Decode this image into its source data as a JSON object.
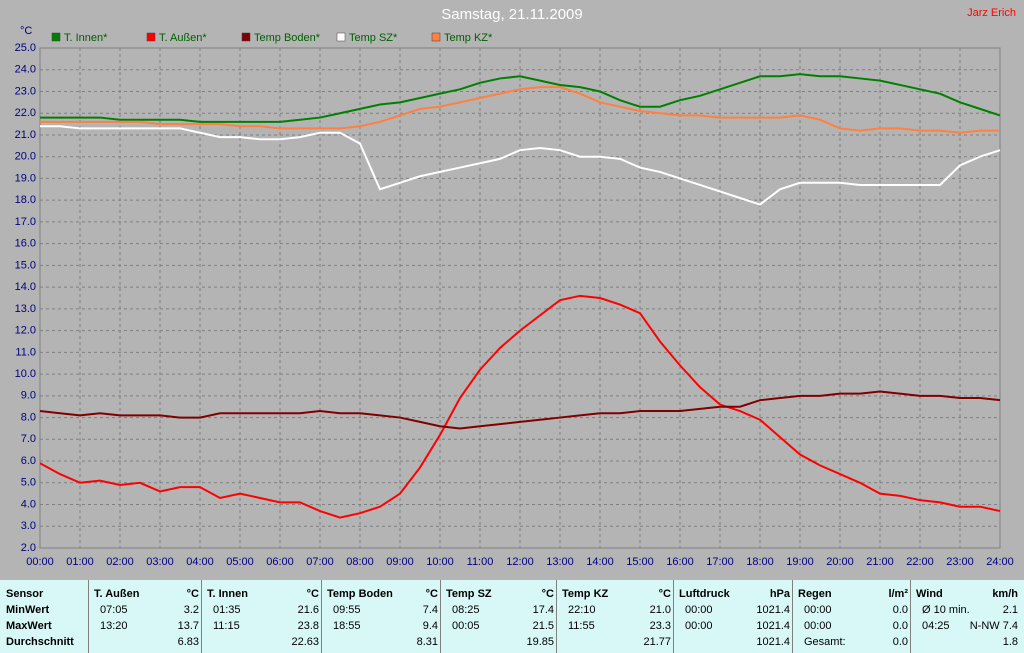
{
  "chart_data": {
    "type": "line",
    "title": "Samstag, 21.11.2009",
    "author": "Jarz Erich",
    "y_label": "°C",
    "x": [
      0,
      0.5,
      1,
      1.5,
      2,
      2.5,
      3,
      3.5,
      4,
      4.5,
      5,
      5.5,
      6,
      6.5,
      7,
      7.5,
      8,
      8.5,
      9,
      9.5,
      10,
      10.5,
      11,
      11.5,
      12,
      12.5,
      13,
      13.5,
      14,
      14.5,
      15,
      15.5,
      16,
      16.5,
      17,
      17.5,
      18,
      18.5,
      19,
      19.5,
      20,
      20.5,
      21,
      21.5,
      22,
      22.5,
      23,
      23.5,
      24
    ],
    "series": [
      {
        "name": "T. Innen*",
        "color": "#008000",
        "values": [
          21.8,
          21.8,
          21.8,
          21.8,
          21.7,
          21.7,
          21.7,
          21.7,
          21.6,
          21.6,
          21.6,
          21.6,
          21.6,
          21.7,
          21.8,
          22.0,
          22.2,
          22.4,
          22.5,
          22.7,
          22.9,
          23.1,
          23.4,
          23.6,
          23.7,
          23.5,
          23.3,
          23.2,
          23.0,
          22.6,
          22.3,
          22.3,
          22.6,
          22.8,
          23.1,
          23.4,
          23.7,
          23.7,
          23.8,
          23.7,
          23.7,
          23.6,
          23.5,
          23.3,
          23.1,
          22.9,
          22.5,
          22.2,
          21.9
        ]
      },
      {
        "name": "T. Außen*",
        "color": "#ff0000",
        "values": [
          5.9,
          5.4,
          5.0,
          5.1,
          4.9,
          5.0,
          4.6,
          4.8,
          4.8,
          4.3,
          4.5,
          4.3,
          4.1,
          4.1,
          3.7,
          3.4,
          3.6,
          3.9,
          4.5,
          5.7,
          7.2,
          8.9,
          10.2,
          11.2,
          12.0,
          12.7,
          13.4,
          13.6,
          13.5,
          13.2,
          12.8,
          11.5,
          10.4,
          9.4,
          8.6,
          8.3,
          7.9,
          7.1,
          6.3,
          5.8,
          5.4,
          5.0,
          4.5,
          4.4,
          4.2,
          4.1,
          3.9,
          3.9,
          3.7
        ]
      },
      {
        "name": "Temp Boden*",
        "color": "#800000",
        "values": [
          8.3,
          8.2,
          8.1,
          8.2,
          8.1,
          8.1,
          8.1,
          8.0,
          8.0,
          8.2,
          8.2,
          8.2,
          8.2,
          8.2,
          8.3,
          8.2,
          8.2,
          8.1,
          8.0,
          7.8,
          7.6,
          7.5,
          7.6,
          7.7,
          7.8,
          7.9,
          8.0,
          8.1,
          8.2,
          8.2,
          8.3,
          8.3,
          8.3,
          8.4,
          8.5,
          8.5,
          8.8,
          8.9,
          9.0,
          9.0,
          9.1,
          9.1,
          9.2,
          9.1,
          9.0,
          9.0,
          8.9,
          8.9,
          8.8
        ]
      },
      {
        "name": "Temp SZ*",
        "color": "#ffffff",
        "values": [
          21.4,
          21.4,
          21.3,
          21.3,
          21.3,
          21.3,
          21.3,
          21.3,
          21.1,
          20.9,
          20.9,
          20.8,
          20.8,
          20.9,
          21.1,
          21.1,
          20.6,
          18.5,
          18.8,
          19.1,
          19.3,
          19.5,
          19.7,
          19.9,
          20.3,
          20.4,
          20.3,
          20.0,
          20.0,
          19.9,
          19.5,
          19.3,
          19.0,
          18.7,
          18.4,
          18.1,
          17.8,
          18.5,
          18.8,
          18.8,
          18.8,
          18.7,
          18.7,
          18.7,
          18.7,
          18.7,
          19.6,
          20.0,
          20.3
        ]
      },
      {
        "name": "Temp KZ*",
        "color": "#ff8040",
        "values": [
          21.6,
          21.6,
          21.6,
          21.6,
          21.6,
          21.6,
          21.5,
          21.5,
          21.5,
          21.5,
          21.4,
          21.4,
          21.3,
          21.3,
          21.3,
          21.3,
          21.4,
          21.6,
          21.9,
          22.2,
          22.3,
          22.5,
          22.7,
          22.9,
          23.1,
          23.2,
          23.2,
          22.9,
          22.5,
          22.3,
          22.1,
          22.0,
          21.9,
          21.9,
          21.8,
          21.8,
          21.8,
          21.8,
          21.9,
          21.7,
          21.3,
          21.2,
          21.3,
          21.3,
          21.2,
          21.2,
          21.1,
          21.2,
          21.2
        ]
      }
    ],
    "xlim": [
      0,
      24
    ],
    "ylim": [
      2,
      25
    ],
    "xticks": [
      {
        "value": 0,
        "label": "00:00"
      },
      {
        "value": 1,
        "label": "01:00"
      },
      {
        "value": 2,
        "label": "02:00"
      },
      {
        "value": 3,
        "label": "03:00"
      },
      {
        "value": 4,
        "label": "04:00"
      },
      {
        "value": 5,
        "label": "05:00"
      },
      {
        "value": 6,
        "label": "06:00"
      },
      {
        "value": 7,
        "label": "07:00"
      },
      {
        "value": 8,
        "label": "08:00"
      },
      {
        "value": 9,
        "label": "09:00"
      },
      {
        "value": 10,
        "label": "10:00"
      },
      {
        "value": 11,
        "label": "11:00"
      },
      {
        "value": 12,
        "label": "12:00"
      },
      {
        "value": 13,
        "label": "13:00"
      },
      {
        "value": 14,
        "label": "14:00"
      },
      {
        "value": 15,
        "label": "15:00"
      },
      {
        "value": 16,
        "label": "16:00"
      },
      {
        "value": 17,
        "label": "17:00"
      },
      {
        "value": 18,
        "label": "18:00"
      },
      {
        "value": 19,
        "label": "19:00"
      },
      {
        "value": 20,
        "label": "20:00"
      },
      {
        "value": 21,
        "label": "21:00"
      },
      {
        "value": 22,
        "label": "22:00"
      },
      {
        "value": 23,
        "label": "23:00"
      },
      {
        "value": 24,
        "label": "24:00"
      }
    ],
    "yticks": [
      {
        "value": 2,
        "label": "2.0"
      },
      {
        "value": 3,
        "label": "3.0"
      },
      {
        "value": 4,
        "label": "4.0"
      },
      {
        "value": 5,
        "label": "5.0"
      },
      {
        "value": 6,
        "label": "6.0"
      },
      {
        "value": 7,
        "label": "7.0"
      },
      {
        "value": 8,
        "label": "8.0"
      },
      {
        "value": 9,
        "label": "9.0"
      },
      {
        "value": 10,
        "label": "10.0"
      },
      {
        "value": 11,
        "label": "11.0"
      },
      {
        "value": 12,
        "label": "12.0"
      },
      {
        "value": 13,
        "label": "13.0"
      },
      {
        "value": 14,
        "label": "14.0"
      },
      {
        "value": 15,
        "label": "15.0"
      },
      {
        "value": 16,
        "label": "16.0"
      },
      {
        "value": 17,
        "label": "17.0"
      },
      {
        "value": 18,
        "label": "18.0"
      },
      {
        "value": 19,
        "label": "19.0"
      },
      {
        "value": 20,
        "label": "20.0"
      },
      {
        "value": 21,
        "label": "21.0"
      },
      {
        "value": 22,
        "label": "22.0"
      },
      {
        "value": 23,
        "label": "23.0"
      },
      {
        "value": 24,
        "label": "24.0"
      },
      {
        "value": 25,
        "label": "25.0"
      }
    ],
    "grid": true,
    "legend": "top"
  },
  "table": {
    "header": "Sensor",
    "row_labels": [
      "MinWert",
      "MaxWert",
      "Durchschnitt"
    ],
    "groups": [
      {
        "name": "T. Außen",
        "unit": "°C",
        "cells": [
          {
            "time": "07:05",
            "value": "3.2"
          },
          {
            "time": "13:20",
            "value": "13.7"
          },
          {
            "value": "6.83"
          }
        ]
      },
      {
        "name": "T. Innen",
        "unit": "°C",
        "cells": [
          {
            "time": "01:35",
            "value": "21.6"
          },
          {
            "time": "11:15",
            "value": "23.8"
          },
          {
            "value": "22.63"
          }
        ]
      },
      {
        "name": "Temp Boden",
        "unit": "°C",
        "cells": [
          {
            "time": "09:55",
            "value": "7.4"
          },
          {
            "time": "18:55",
            "value": "9.4"
          },
          {
            "value": "8.31"
          }
        ]
      },
      {
        "name": "Temp SZ",
        "unit": "°C",
        "cells": [
          {
            "time": "08:25",
            "value": "17.4"
          },
          {
            "time": "00:05",
            "value": "21.5"
          },
          {
            "value": "19.85"
          }
        ]
      },
      {
        "name": "Temp KZ",
        "unit": "°C",
        "cells": [
          {
            "time": "22:10",
            "value": "21.0"
          },
          {
            "time": "11:55",
            "value": "23.3"
          },
          {
            "value": "21.77"
          }
        ]
      },
      {
        "name": "Luftdruck",
        "unit": "hPa",
        "cells": [
          {
            "time": "00:00",
            "value": "1021.4"
          },
          {
            "time": "00:00",
            "value": "1021.4"
          },
          {
            "value": "1021.4"
          }
        ]
      },
      {
        "name": "Regen",
        "unit": "l/m²",
        "cells": [
          {
            "time": "00:00",
            "value": "0.0"
          },
          {
            "time": "00:00",
            "value": "0.0"
          },
          {
            "time": "Gesamt:",
            "value": "0.0"
          }
        ]
      },
      {
        "name": "Wind",
        "unit": "km/h",
        "cells": [
          {
            "time": "Ø 10 min.",
            "value": "2.1"
          },
          {
            "time": "04:25",
            "value": "N-NW 7.4"
          },
          {
            "value": "1.8"
          }
        ]
      }
    ]
  }
}
